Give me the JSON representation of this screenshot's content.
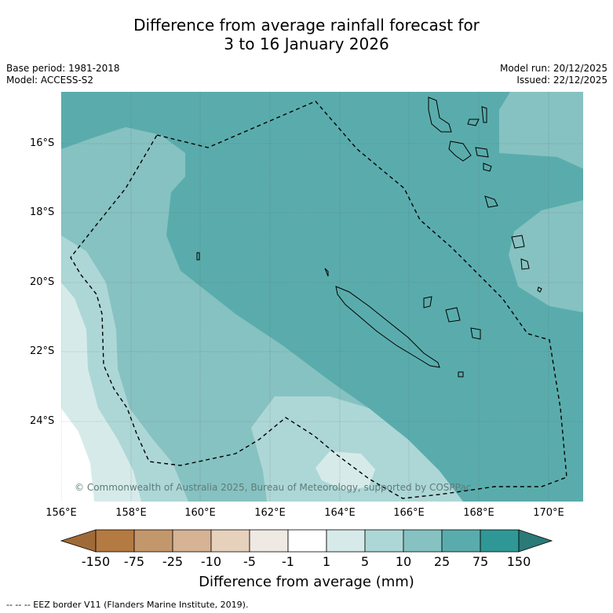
{
  "title": {
    "line1": "Difference from average rainfall forecast for",
    "line2": "3 to 16 January 2026"
  },
  "meta": {
    "base_period": "Base period: 1981-2018",
    "model": "Model: ACCESS-S2",
    "model_run": "Model run: 20/12/2025",
    "issued": "Issued: 22/12/2025"
  },
  "map": {
    "lat_labels": [
      "16°S",
      "18°S",
      "20°S",
      "22°S",
      "24°S"
    ],
    "lon_labels": [
      "156°E",
      "158°E",
      "160°E",
      "162°E",
      "164°E",
      "166°E",
      "168°E",
      "170°E"
    ],
    "copyright": "© Commonwealth of Australia 2025, Bureau of Meteorology, supported by COSPPac"
  },
  "colorbar": {
    "labels": [
      "-150",
      "-75",
      "-25",
      "-10",
      "-5",
      "-1",
      "1",
      "5",
      "10",
      "25",
      "75",
      "150"
    ],
    "colors": [
      "#a06a38",
      "#b37a42",
      "#c3976c",
      "#d5b394",
      "#e6d1bd",
      "#efe9e4",
      "#ffffff",
      "#d6ebe9",
      "#add7d6",
      "#86c2c1",
      "#5aacac",
      "#2f9896",
      "#2b7a78"
    ],
    "title": "Difference from average (mm)"
  },
  "footer": "--  --  -- EEZ border V11 (Flanders Marine Institute, 2019)."
}
